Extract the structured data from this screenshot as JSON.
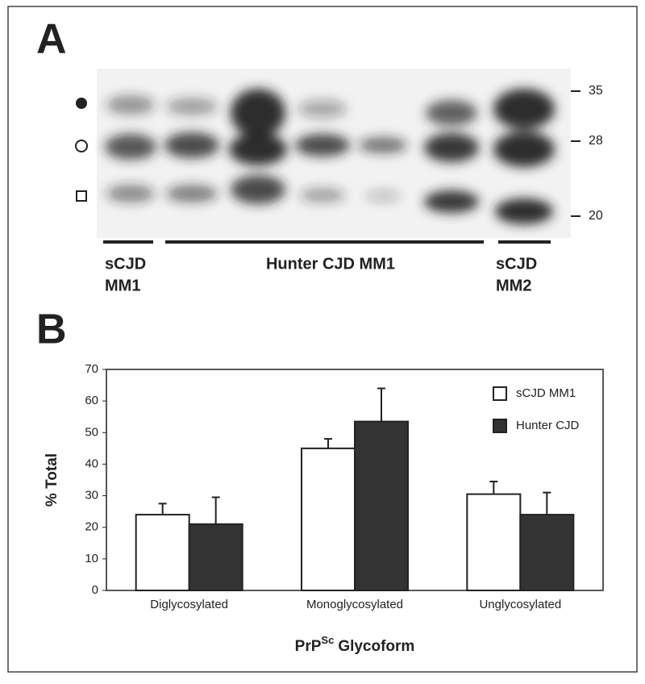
{
  "panel_a": {
    "label": "A",
    "marker_labels": [
      35,
      28,
      20
    ],
    "groups": [
      {
        "lines": [
          "sCJD",
          "MM1"
        ]
      },
      {
        "lines": [
          "Hunter CJD MM1"
        ]
      },
      {
        "lines": [
          "sCJD",
          "MM2"
        ]
      }
    ]
  },
  "panel_b": {
    "label": "B"
  },
  "chart_data": {
    "type": "bar",
    "categories": [
      "Diglycosylated",
      "Monoglycosylated",
      "Unglycosylated"
    ],
    "series": [
      {
        "name": "sCJD MM1",
        "color": "#ffffff",
        "values": [
          24,
          45,
          30.5
        ],
        "errors": [
          3.5,
          3,
          4
        ]
      },
      {
        "name": "Hunter CJD",
        "color": "#333333",
        "values": [
          21,
          53.5,
          24
        ],
        "errors": [
          8.5,
          10.5,
          7
        ]
      }
    ],
    "y_label": "% Total",
    "x_label": [
      "PrP",
      "Sc",
      "Glycoform"
    ],
    "ylim": [
      0,
      70
    ],
    "yticks": [
      0,
      10,
      20,
      30,
      40,
      50,
      60,
      70
    ],
    "legend": "top-right"
  }
}
